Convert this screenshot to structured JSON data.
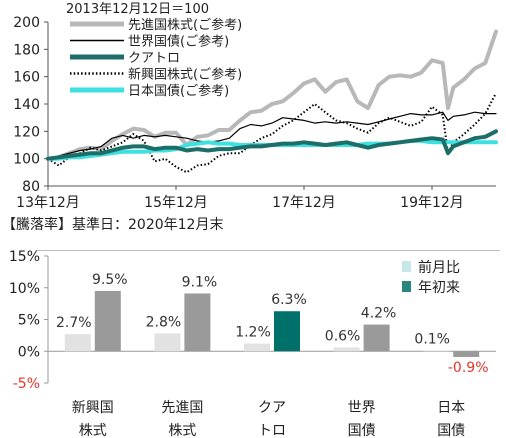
{
  "chart_data": [
    {
      "type": "line",
      "title": "2013年12月12日＝100",
      "xlabel": "",
      "ylabel": "",
      "ylim": [
        80,
        200
      ],
      "yticks": [
        80,
        100,
        120,
        140,
        160,
        180,
        200
      ],
      "xtick_labels": [
        "13年12月",
        "15年12月",
        "17年12月",
        "19年12月"
      ],
      "xlim": [
        "2013-12",
        "2020-12"
      ],
      "grid": false,
      "legend_position": "top-left",
      "series": [
        {
          "name": "先進国株式(ご参考)",
          "color": "#b8b8b8",
          "style": "thick",
          "x": [
            "2013-12",
            "2014-02",
            "2014-04",
            "2014-06",
            "2014-08",
            "2014-10",
            "2014-12",
            "2015-02",
            "2015-04",
            "2015-06",
            "2015-08",
            "2015-10",
            "2015-12",
            "2016-02",
            "2016-04",
            "2016-06",
            "2016-08",
            "2016-10",
            "2016-12",
            "2017-02",
            "2017-04",
            "2017-06",
            "2017-08",
            "2017-10",
            "2017-12",
            "2018-02",
            "2018-04",
            "2018-06",
            "2018-08",
            "2018-10",
            "2018-12",
            "2019-02",
            "2019-04",
            "2019-06",
            "2019-08",
            "2019-10",
            "2019-12",
            "2020-02",
            "2020-03",
            "2020-04",
            "2020-06",
            "2020-08",
            "2020-10",
            "2020-12"
          ],
          "values": [
            100,
            101,
            104,
            107,
            108,
            107,
            113,
            118,
            122,
            121,
            116,
            119,
            119,
            110,
            116,
            117,
            121,
            121,
            128,
            134,
            135,
            140,
            142,
            148,
            155,
            158,
            149,
            156,
            158,
            142,
            137,
            154,
            160,
            161,
            160,
            163,
            172,
            170,
            137,
            152,
            158,
            166,
            170,
            193
          ]
        },
        {
          "name": "世界国債(ご参考)",
          "color": "#000000",
          "style": "thin",
          "x": [
            "2013-12",
            "2014-02",
            "2014-04",
            "2014-06",
            "2014-08",
            "2014-10",
            "2014-12",
            "2015-02",
            "2015-04",
            "2015-06",
            "2015-08",
            "2015-10",
            "2015-12",
            "2016-02",
            "2016-04",
            "2016-06",
            "2016-08",
            "2016-10",
            "2016-12",
            "2017-02",
            "2017-04",
            "2017-06",
            "2017-08",
            "2017-10",
            "2017-12",
            "2018-02",
            "2018-04",
            "2018-06",
            "2018-08",
            "2018-10",
            "2018-12",
            "2019-02",
            "2019-04",
            "2019-06",
            "2019-08",
            "2019-10",
            "2019-12",
            "2020-02",
            "2020-03",
            "2020-04",
            "2020-06",
            "2020-08",
            "2020-10",
            "2020-12"
          ],
          "values": [
            100,
            102,
            104,
            106,
            107,
            109,
            115,
            117,
            115,
            117,
            116,
            117,
            116,
            115,
            113,
            112,
            113,
            115,
            122,
            125,
            124,
            126,
            130,
            129,
            128,
            126,
            127,
            126,
            127,
            126,
            125,
            127,
            129,
            131,
            133,
            132,
            132,
            134,
            128,
            131,
            132,
            134,
            133,
            133
          ]
        },
        {
          "name": "クアトロ",
          "color": "#1d6e68",
          "style": "thick",
          "x": [
            "2013-12",
            "2014-02",
            "2014-04",
            "2014-06",
            "2014-08",
            "2014-10",
            "2014-12",
            "2015-02",
            "2015-04",
            "2015-06",
            "2015-08",
            "2015-10",
            "2015-12",
            "2016-02",
            "2016-04",
            "2016-06",
            "2016-08",
            "2016-10",
            "2016-12",
            "2017-02",
            "2017-04",
            "2017-06",
            "2017-08",
            "2017-10",
            "2017-12",
            "2018-02",
            "2018-04",
            "2018-06",
            "2018-08",
            "2018-10",
            "2018-12",
            "2019-02",
            "2019-04",
            "2019-06",
            "2019-08",
            "2019-10",
            "2019-12",
            "2020-02",
            "2020-03",
            "2020-04",
            "2020-06",
            "2020-08",
            "2020-10",
            "2020-12"
          ],
          "values": [
            100,
            101,
            102,
            103,
            104,
            104,
            106,
            108,
            109,
            109,
            107,
            108,
            108,
            106,
            107,
            106,
            107,
            107,
            108,
            109,
            109,
            110,
            111,
            111,
            112,
            111,
            110,
            111,
            112,
            110,
            108,
            110,
            111,
            112,
            113,
            114,
            115,
            114,
            104,
            109,
            112,
            115,
            116,
            120
          ]
        },
        {
          "name": "新興国株式(ご参考)",
          "color": "#000000",
          "style": "dotted",
          "x": [
            "2013-12",
            "2014-02",
            "2014-04",
            "2014-06",
            "2014-08",
            "2014-10",
            "2014-12",
            "2015-02",
            "2015-04",
            "2015-06",
            "2015-08",
            "2015-10",
            "2015-12",
            "2016-02",
            "2016-04",
            "2016-06",
            "2016-08",
            "2016-10",
            "2016-12",
            "2017-02",
            "2017-04",
            "2017-06",
            "2017-08",
            "2017-10",
            "2017-12",
            "2018-02",
            "2018-04",
            "2018-06",
            "2018-08",
            "2018-10",
            "2018-12",
            "2019-02",
            "2019-04",
            "2019-06",
            "2019-08",
            "2019-10",
            "2019-12",
            "2020-02",
            "2020-03",
            "2020-04",
            "2020-06",
            "2020-08",
            "2020-10",
            "2020-12"
          ],
          "values": [
            100,
            95,
            101,
            104,
            108,
            106,
            109,
            112,
            118,
            113,
            98,
            100,
            94,
            90,
            95,
            96,
            102,
            104,
            104,
            110,
            115,
            118,
            124,
            128,
            134,
            140,
            134,
            128,
            126,
            122,
            119,
            126,
            130,
            127,
            124,
            127,
            138,
            132,
            104,
            112,
            118,
            125,
            133,
            148
          ]
        },
        {
          "name": "日本国債(ご参考)",
          "color": "#3ee0e0",
          "style": "thick",
          "x": [
            "2013-12",
            "2014-02",
            "2014-04",
            "2014-06",
            "2014-08",
            "2014-10",
            "2014-12",
            "2015-02",
            "2015-04",
            "2015-06",
            "2015-08",
            "2015-10",
            "2015-12",
            "2016-02",
            "2016-04",
            "2016-06",
            "2016-08",
            "2016-10",
            "2016-12",
            "2017-02",
            "2017-04",
            "2017-06",
            "2017-08",
            "2017-10",
            "2017-12",
            "2018-02",
            "2018-04",
            "2018-06",
            "2018-08",
            "2018-10",
            "2018-12",
            "2019-02",
            "2019-04",
            "2019-06",
            "2019-08",
            "2019-10",
            "2019-12",
            "2020-02",
            "2020-03",
            "2020-04",
            "2020-06",
            "2020-08",
            "2020-10",
            "2020-12"
          ],
          "values": [
            100,
            100,
            101,
            101,
            102,
            103,
            104,
            105,
            105,
            105,
            106,
            106,
            107,
            110,
            111,
            112,
            111,
            111,
            110,
            110,
            110,
            110,
            110,
            110,
            110,
            110,
            110,
            110,
            110,
            110,
            111,
            111,
            111,
            112,
            113,
            113,
            112,
            112,
            112,
            112,
            112,
            112,
            112,
            112
          ]
        }
      ]
    },
    {
      "type": "bar",
      "title": "【騰落率】基準日：2020年12月末",
      "xlabel": "",
      "ylabel": "",
      "ylim": [
        -5,
        15
      ],
      "yticks": [
        -5,
        0,
        5,
        10,
        15
      ],
      "ytick_labels": [
        "-5%",
        "0%",
        "5%",
        "10%",
        "15%"
      ],
      "grid": false,
      "legend_position": "top-right",
      "categories": [
        [
          "新興国",
          "株式"
        ],
        [
          "先進国",
          "株式"
        ],
        [
          "クア",
          "トロ"
        ],
        [
          "世界",
          "国債"
        ],
        [
          "日本",
          "国債"
        ]
      ],
      "series": [
        {
          "name": "前月比",
          "values": [
            2.7,
            2.8,
            1.2,
            0.6,
            0.1
          ],
          "labels": [
            "2.7%",
            "2.8%",
            "1.2%",
            "0.6%",
            "0.1%"
          ],
          "colors": [
            "#e2e2e2",
            "#e2e2e2",
            "#e2e2e2",
            "#e2e2e2",
            "#e2e2e2"
          ],
          "legend_color": "#c6e8e8"
        },
        {
          "name": "年初来",
          "values": [
            9.5,
            9.1,
            6.3,
            4.2,
            -0.9
          ],
          "labels": [
            "9.5%",
            "9.1%",
            "6.3%",
            "4.2%",
            "-0.9%"
          ],
          "colors": [
            "#9a9a9a",
            "#9a9a9a",
            "#00706a",
            "#9a9a9a",
            "#9a9a9a"
          ],
          "label_colors": [
            "#333333",
            "#333333",
            "#333333",
            "#333333",
            "#e8332a"
          ],
          "legend_color": "#2a8580"
        }
      ]
    }
  ]
}
